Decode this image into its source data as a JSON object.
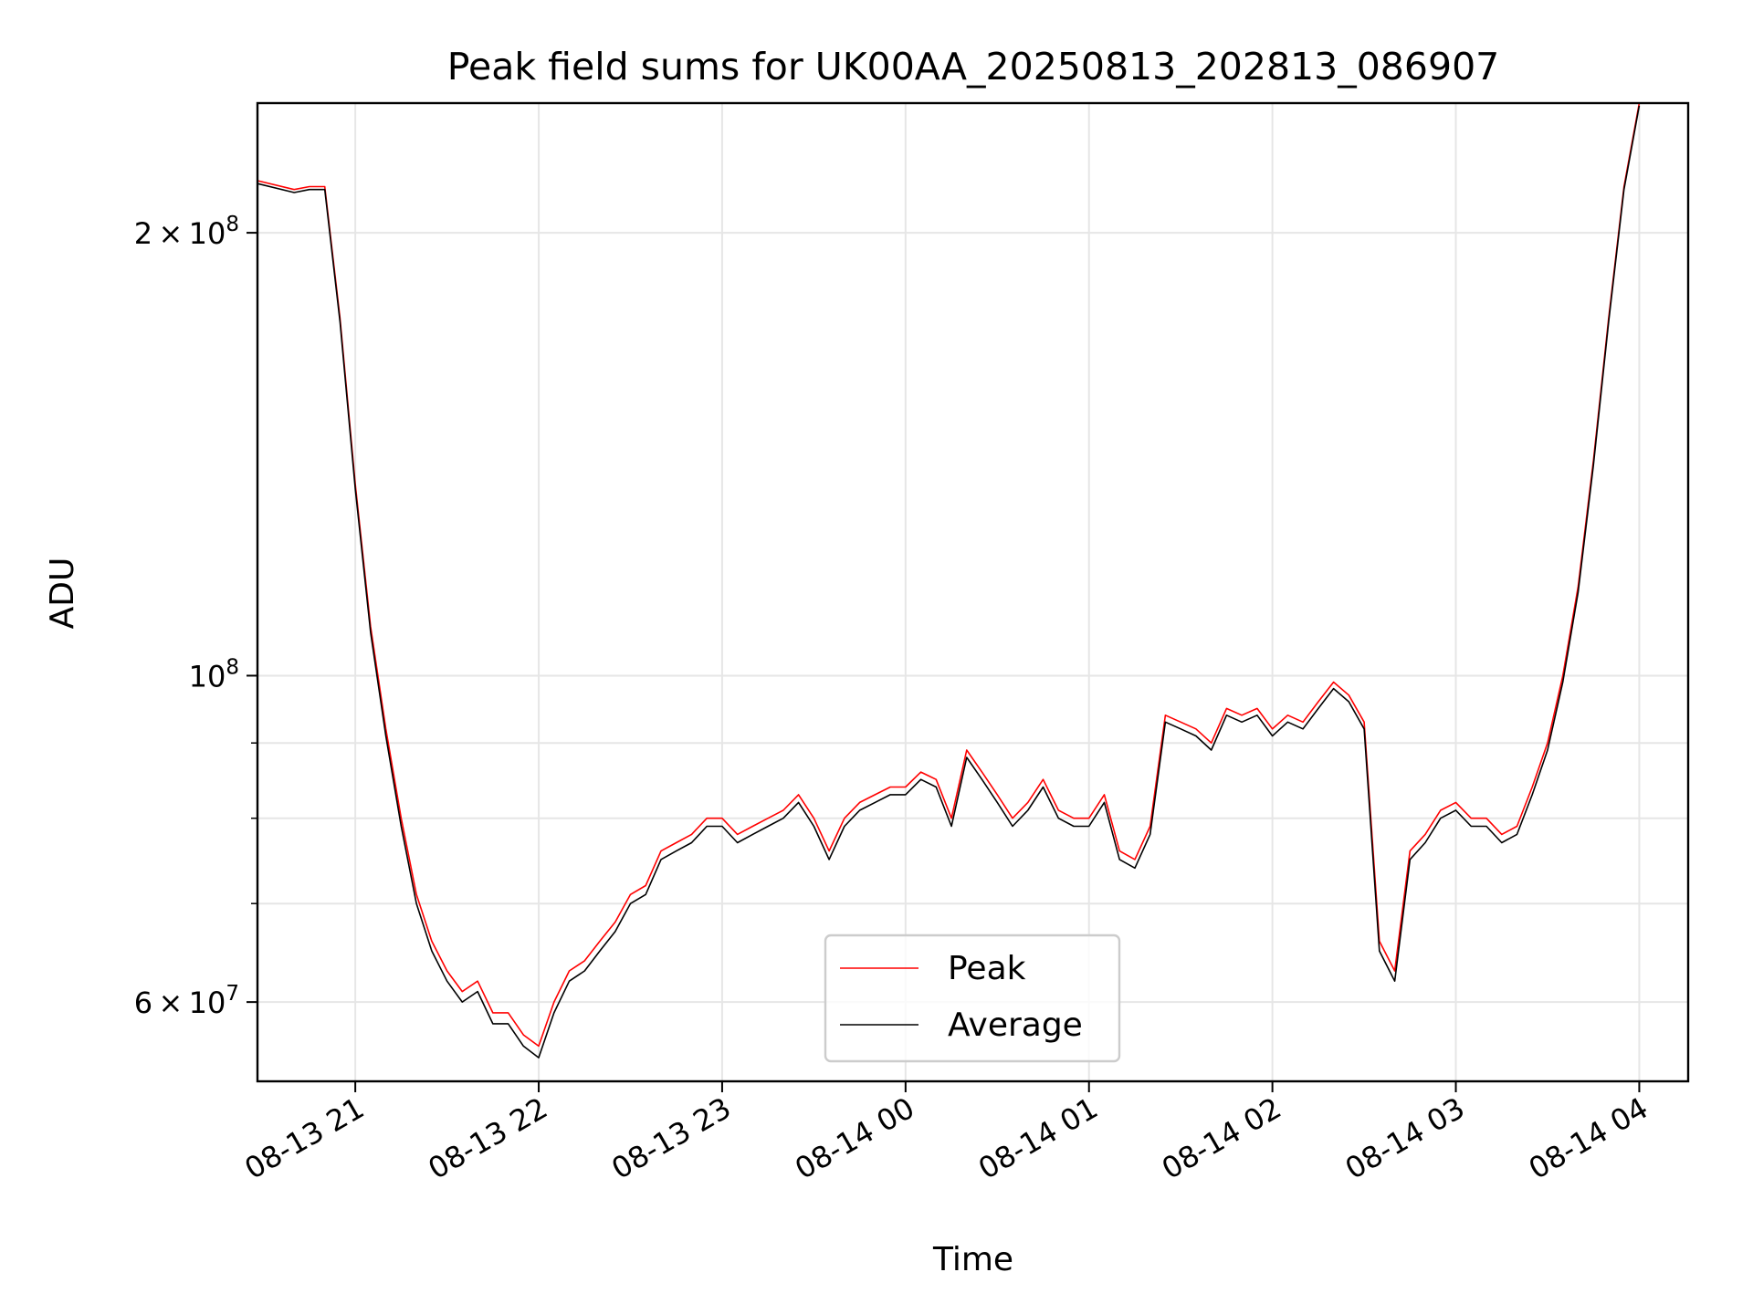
{
  "chart_data": {
    "type": "line",
    "title": "Peak field sums for UK00AA_20250813_202813_086907",
    "xlabel": "Time",
    "ylabel": "ADU",
    "y_scale": "log",
    "ylim": [
      53000000,
      245000000
    ],
    "xlim": [
      "2025-08-13 20:28",
      "2025-08-14 04:16"
    ],
    "grid": true,
    "legend_position": "lower center",
    "x_tick_labels": [
      {
        "t": "2025-08-13 21:00",
        "label": "08-13 21"
      },
      {
        "t": "2025-08-13 22:00",
        "label": "08-13 22"
      },
      {
        "t": "2025-08-13 23:00",
        "label": "08-13 23"
      },
      {
        "t": "2025-08-14 00:00",
        "label": "08-14 00"
      },
      {
        "t": "2025-08-14 01:00",
        "label": "08-14 01"
      },
      {
        "t": "2025-08-14 02:00",
        "label": "08-14 02"
      },
      {
        "t": "2025-08-14 03:00",
        "label": "08-14 03"
      },
      {
        "t": "2025-08-14 04:00",
        "label": "08-14 04"
      }
    ],
    "y_major_ticks": [
      {
        "value": 60000000,
        "mantissa": "6",
        "exponent": "7"
      },
      {
        "value": 100000000,
        "mantissa": "",
        "exponent": "8"
      },
      {
        "value": 200000000,
        "mantissa": "2",
        "exponent": "8"
      }
    ],
    "y_minor_ticks": [
      70000000,
      80000000,
      90000000
    ],
    "series": [
      {
        "name": "Peak",
        "color": "#ff0000",
        "x": [
          "2025-08-13 20:28",
          "2025-08-13 20:40",
          "2025-08-13 20:45",
          "2025-08-13 20:50",
          "2025-08-13 20:55",
          "2025-08-13 21:00",
          "2025-08-13 21:05",
          "2025-08-13 21:10",
          "2025-08-13 21:15",
          "2025-08-13 21:20",
          "2025-08-13 21:25",
          "2025-08-13 21:30",
          "2025-08-13 21:35",
          "2025-08-13 21:40",
          "2025-08-13 21:45",
          "2025-08-13 21:50",
          "2025-08-13 21:55",
          "2025-08-13 22:00",
          "2025-08-13 22:05",
          "2025-08-13 22:10",
          "2025-08-13 22:15",
          "2025-08-13 22:20",
          "2025-08-13 22:25",
          "2025-08-13 22:30",
          "2025-08-13 22:35",
          "2025-08-13 22:40",
          "2025-08-13 22:45",
          "2025-08-13 22:50",
          "2025-08-13 22:55",
          "2025-08-13 23:00",
          "2025-08-13 23:05",
          "2025-08-13 23:10",
          "2025-08-13 23:15",
          "2025-08-13 23:20",
          "2025-08-13 23:25",
          "2025-08-13 23:30",
          "2025-08-13 23:35",
          "2025-08-13 23:40",
          "2025-08-13 23:45",
          "2025-08-13 23:50",
          "2025-08-13 23:55",
          "2025-08-14 00:00",
          "2025-08-14 00:05",
          "2025-08-14 00:10",
          "2025-08-14 00:15",
          "2025-08-14 00:20",
          "2025-08-14 00:25",
          "2025-08-14 00:30",
          "2025-08-14 00:35",
          "2025-08-14 00:40",
          "2025-08-14 00:45",
          "2025-08-14 00:50",
          "2025-08-14 00:55",
          "2025-08-14 01:00",
          "2025-08-14 01:05",
          "2025-08-14 01:10",
          "2025-08-14 01:15",
          "2025-08-14 01:20",
          "2025-08-14 01:25",
          "2025-08-14 01:30",
          "2025-08-14 01:35",
          "2025-08-14 01:40",
          "2025-08-14 01:45",
          "2025-08-14 01:50",
          "2025-08-14 01:55",
          "2025-08-14 02:00",
          "2025-08-14 02:05",
          "2025-08-14 02:10",
          "2025-08-14 02:15",
          "2025-08-14 02:20",
          "2025-08-14 02:25",
          "2025-08-14 02:30",
          "2025-08-14 02:35",
          "2025-08-14 02:40",
          "2025-08-14 02:45",
          "2025-08-14 02:50",
          "2025-08-14 02:55",
          "2025-08-14 03:00",
          "2025-08-14 03:05",
          "2025-08-14 03:10",
          "2025-08-14 03:15",
          "2025-08-14 03:20",
          "2025-08-14 03:25",
          "2025-08-14 03:30",
          "2025-08-14 03:35",
          "2025-08-14 03:40",
          "2025-08-14 03:45",
          "2025-08-14 03:50",
          "2025-08-14 03:55",
          "2025-08-14 04:00"
        ],
        "values": [
          217000000,
          214000000,
          215000000,
          215000000,
          175000000,
          135000000,
          108000000,
          92000000,
          80000000,
          71000000,
          66000000,
          63000000,
          61000000,
          62000000,
          59000000,
          59000000,
          57000000,
          56000000,
          60000000,
          63000000,
          64000000,
          66000000,
          68000000,
          71000000,
          72000000,
          76000000,
          77000000,
          78000000,
          80000000,
          80000000,
          78000000,
          79000000,
          80000000,
          81000000,
          83000000,
          80000000,
          76000000,
          80000000,
          82000000,
          83000000,
          84000000,
          84000000,
          86000000,
          85000000,
          80000000,
          89000000,
          86000000,
          83000000,
          80000000,
          82000000,
          85000000,
          81000000,
          80000000,
          80000000,
          83000000,
          76000000,
          75000000,
          79000000,
          94000000,
          93000000,
          92000000,
          90000000,
          95000000,
          94000000,
          95000000,
          92000000,
          94000000,
          93000000,
          96000000,
          99000000,
          97000000,
          93000000,
          66000000,
          63000000,
          76000000,
          78000000,
          81000000,
          82000000,
          80000000,
          80000000,
          78000000,
          79000000,
          84000000,
          90000000,
          100000000,
          115000000,
          140000000,
          175000000,
          215000000,
          245000000
        ]
      },
      {
        "name": "Average",
        "color": "#000000",
        "x": [
          "2025-08-13 20:28",
          "2025-08-13 20:40",
          "2025-08-13 20:45",
          "2025-08-13 20:50",
          "2025-08-13 20:55",
          "2025-08-13 21:00",
          "2025-08-13 21:05",
          "2025-08-13 21:10",
          "2025-08-13 21:15",
          "2025-08-13 21:20",
          "2025-08-13 21:25",
          "2025-08-13 21:30",
          "2025-08-13 21:35",
          "2025-08-13 21:40",
          "2025-08-13 21:45",
          "2025-08-13 21:50",
          "2025-08-13 21:55",
          "2025-08-13 22:00",
          "2025-08-13 22:05",
          "2025-08-13 22:10",
          "2025-08-13 22:15",
          "2025-08-13 22:20",
          "2025-08-13 22:25",
          "2025-08-13 22:30",
          "2025-08-13 22:35",
          "2025-08-13 22:40",
          "2025-08-13 22:45",
          "2025-08-13 22:50",
          "2025-08-13 22:55",
          "2025-08-13 23:00",
          "2025-08-13 23:05",
          "2025-08-13 23:10",
          "2025-08-13 23:15",
          "2025-08-13 23:20",
          "2025-08-13 23:25",
          "2025-08-13 23:30",
          "2025-08-13 23:35",
          "2025-08-13 23:40",
          "2025-08-13 23:45",
          "2025-08-13 23:50",
          "2025-08-13 23:55",
          "2025-08-14 00:00",
          "2025-08-14 00:05",
          "2025-08-14 00:10",
          "2025-08-14 00:15",
          "2025-08-14 00:20",
          "2025-08-14 00:25",
          "2025-08-14 00:30",
          "2025-08-14 00:35",
          "2025-08-14 00:40",
          "2025-08-14 00:45",
          "2025-08-14 00:50",
          "2025-08-14 00:55",
          "2025-08-14 01:00",
          "2025-08-14 01:05",
          "2025-08-14 01:10",
          "2025-08-14 01:15",
          "2025-08-14 01:20",
          "2025-08-14 01:25",
          "2025-08-14 01:30",
          "2025-08-14 01:35",
          "2025-08-14 01:40",
          "2025-08-14 01:45",
          "2025-08-14 01:50",
          "2025-08-14 01:55",
          "2025-08-14 02:00",
          "2025-08-14 02:05",
          "2025-08-14 02:10",
          "2025-08-14 02:15",
          "2025-08-14 02:20",
          "2025-08-14 02:25",
          "2025-08-14 02:30",
          "2025-08-14 02:35",
          "2025-08-14 02:40",
          "2025-08-14 02:45",
          "2025-08-14 02:50",
          "2025-08-14 02:55",
          "2025-08-14 03:00",
          "2025-08-14 03:05",
          "2025-08-14 03:10",
          "2025-08-14 03:15",
          "2025-08-14 03:20",
          "2025-08-14 03:25",
          "2025-08-14 03:30",
          "2025-08-14 03:35",
          "2025-08-14 03:40",
          "2025-08-14 03:45",
          "2025-08-14 03:50",
          "2025-08-14 03:55",
          "2025-08-14 04:00"
        ],
        "values": [
          216000000,
          213000000,
          214000000,
          214000000,
          174000000,
          134000000,
          107000000,
          91000000,
          79000000,
          70000000,
          65000000,
          62000000,
          60000000,
          61000000,
          58000000,
          58000000,
          56000000,
          55000000,
          59000000,
          62000000,
          63000000,
          65000000,
          67000000,
          70000000,
          71000000,
          75000000,
          76000000,
          77000000,
          79000000,
          79000000,
          77000000,
          78000000,
          79000000,
          80000000,
          82000000,
          79000000,
          75000000,
          79000000,
          81000000,
          82000000,
          83000000,
          83000000,
          85000000,
          84000000,
          79000000,
          88000000,
          85000000,
          82000000,
          79000000,
          81000000,
          84000000,
          80000000,
          79000000,
          79000000,
          82000000,
          75000000,
          74000000,
          78000000,
          93000000,
          92000000,
          91000000,
          89000000,
          94000000,
          93000000,
          94000000,
          91000000,
          93000000,
          92000000,
          95000000,
          98000000,
          96000000,
          92000000,
          65000000,
          62000000,
          75000000,
          77000000,
          80000000,
          81000000,
          79000000,
          79000000,
          77000000,
          78000000,
          83000000,
          89000000,
          99000000,
          114000000,
          139000000,
          174000000,
          214000000,
          244000000
        ]
      }
    ]
  }
}
